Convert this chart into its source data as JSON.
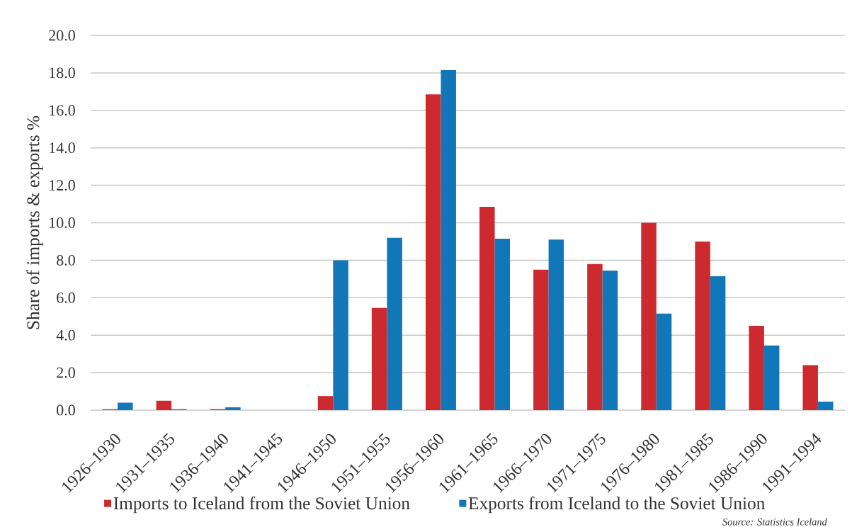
{
  "chart_data": {
    "type": "bar",
    "ylabel": "Share of imports & exports %",
    "categories": [
      "1926–1930",
      "1931–1935",
      "1936–1940",
      "1941–1945",
      "1946–1950",
      "1951–1955",
      "1956–1960",
      "1961–1965",
      "1966–1970",
      "1971–1975",
      "1976–1980",
      "1981–1985",
      "1986–1990",
      "1991–1994"
    ],
    "series": [
      {
        "name": "Imports to Iceland from the Soviet Union",
        "color": "#cd2a30",
        "values": [
          0.05,
          0.5,
          0.05,
          0,
          0.75,
          5.45,
          16.85,
          10.85,
          7.5,
          7.8,
          10.0,
          9.0,
          4.5,
          2.4
        ]
      },
      {
        "name": "Exports from Iceland to the Soviet Union",
        "color": "#1277b8",
        "values": [
          0.4,
          0.05,
          0.15,
          0,
          8.0,
          9.2,
          18.15,
          9.15,
          9.1,
          7.45,
          5.15,
          7.15,
          3.45,
          0.45
        ]
      }
    ],
    "ylim": [
      0,
      20
    ],
    "yticks": [
      {
        "value": 0,
        "label": "0.0"
      },
      {
        "value": 2,
        "label": "2.0"
      },
      {
        "value": 4,
        "label": "4.0"
      },
      {
        "value": 6,
        "label": "6.0"
      },
      {
        "value": 8,
        "label": "8.0"
      },
      {
        "value": 10,
        "label": "10.0"
      },
      {
        "value": 12,
        "label": "12.0"
      },
      {
        "value": 14,
        "label": "14.0"
      },
      {
        "value": 16,
        "label": "16.0"
      },
      {
        "value": 18,
        "label": "18.0"
      },
      {
        "value": 20,
        "label": "20.0"
      }
    ],
    "grid": "y",
    "legend": "bottom",
    "annotations": [
      "Source: Statistics Iceland"
    ]
  }
}
